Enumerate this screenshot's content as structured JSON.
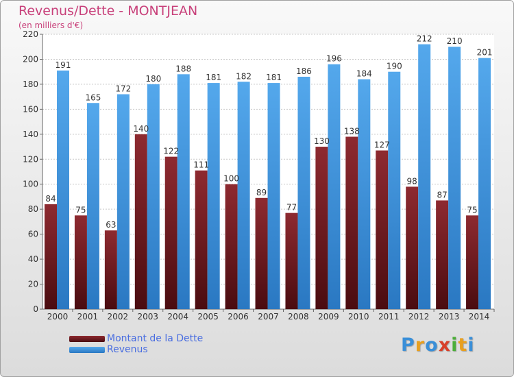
{
  "title": "Revenus/Dette - MONTJEAN",
  "subtitle": "(en milliers d'€)",
  "colors": {
    "dette": "#7a1f24",
    "revenus": "#3f8fd6",
    "title": "#c8407a"
  },
  "logo": {
    "text": "Proxiti"
  },
  "chart_data": {
    "type": "bar",
    "categories": [
      "2000",
      "2001",
      "2002",
      "2003",
      "2004",
      "2005",
      "2006",
      "2007",
      "2008",
      "2009",
      "2010",
      "2011",
      "2012",
      "2013",
      "2014"
    ],
    "series": [
      {
        "name": "Montant de la Dette",
        "values": [
          84,
          75,
          63,
          140,
          122,
          111,
          100,
          89,
          77,
          130,
          138,
          127,
          98,
          87,
          75
        ]
      },
      {
        "name": "Revenus",
        "values": [
          191,
          165,
          172,
          180,
          188,
          181,
          182,
          181,
          186,
          196,
          184,
          190,
          212,
          210,
          201
        ]
      }
    ],
    "ylim": [
      0,
      220
    ],
    "yticks": [
      0,
      20,
      40,
      60,
      80,
      100,
      120,
      140,
      160,
      180,
      200,
      220
    ],
    "grid": true,
    "legend": "bottom-left"
  }
}
